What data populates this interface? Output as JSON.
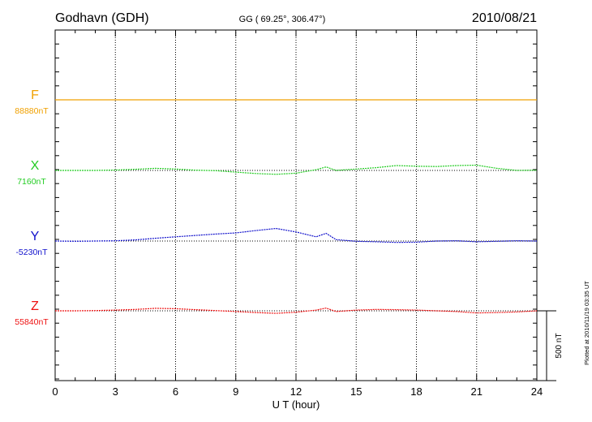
{
  "header": {
    "station": "Godhavn (GDH)",
    "coords": "GG ( 69.25°, 306.47°)",
    "date": "2010/08/21"
  },
  "footer": {
    "plotted": "Plotted at 2010/11/19 03:35 UT",
    "scale_label": "500 nT"
  },
  "colors": {
    "F": "#f0a000",
    "X": "#22cc22",
    "Y": "#1010cc",
    "Z": "#ee1111"
  },
  "chart_data": {
    "type": "line",
    "xlabel": "U T (hour)",
    "xlim": [
      0,
      24
    ],
    "x_ticks": [
      "0",
      "3",
      "6",
      "9",
      "12",
      "15",
      "18",
      "21",
      "24"
    ],
    "scale_bar_nT": 500,
    "series": [
      {
        "name": "F",
        "baseline_label": "88880nT",
        "x": [
          0,
          3,
          6,
          9,
          12,
          15,
          18,
          21,
          24
        ],
        "values": [
          88880,
          88880,
          88880,
          88880,
          88880,
          88880,
          88880,
          88880,
          88880
        ]
      },
      {
        "name": "X",
        "baseline_label": "7160nT",
        "x": [
          0,
          1,
          2,
          3,
          4,
          5,
          6,
          7,
          8,
          9,
          10,
          11,
          12,
          13,
          13.5,
          14,
          15,
          16,
          17,
          18,
          19,
          20,
          21,
          22,
          23,
          24
        ],
        "values": [
          7160,
          7160,
          7160,
          7163,
          7168,
          7175,
          7170,
          7162,
          7158,
          7148,
          7138,
          7132,
          7140,
          7165,
          7185,
          7160,
          7170,
          7180,
          7195,
          7190,
          7188,
          7195,
          7198,
          7175,
          7160,
          7162
        ]
      },
      {
        "name": "Y",
        "baseline_label": "-5230nT",
        "x": [
          0,
          1,
          2,
          3,
          4,
          5,
          6,
          7,
          8,
          9,
          10,
          11,
          12,
          13,
          13.5,
          14,
          15,
          16,
          17,
          18,
          19,
          20,
          21,
          22,
          23,
          24
        ],
        "values": [
          -5230,
          -5232,
          -5230,
          -5228,
          -5222,
          -5210,
          -5200,
          -5190,
          -5180,
          -5172,
          -5155,
          -5140,
          -5165,
          -5200,
          -5175,
          -5220,
          -5232,
          -5235,
          -5240,
          -5238,
          -5230,
          -5228,
          -5235,
          -5232,
          -5228,
          -5230
        ]
      },
      {
        "name": "Z",
        "baseline_label": "55840nT",
        "x": [
          0,
          1,
          2,
          3,
          4,
          5,
          6,
          7,
          8,
          9,
          10,
          11,
          12,
          13,
          13.5,
          14,
          15,
          16,
          17,
          18,
          19,
          20,
          21,
          22,
          23,
          24
        ],
        "values": [
          55840,
          55840,
          55842,
          55845,
          55850,
          55858,
          55855,
          55848,
          55842,
          55835,
          55828,
          55822,
          55830,
          55845,
          55860,
          55835,
          55845,
          55850,
          55848,
          55845,
          55840,
          55835,
          55825,
          55828,
          55832,
          55840
        ]
      }
    ]
  }
}
